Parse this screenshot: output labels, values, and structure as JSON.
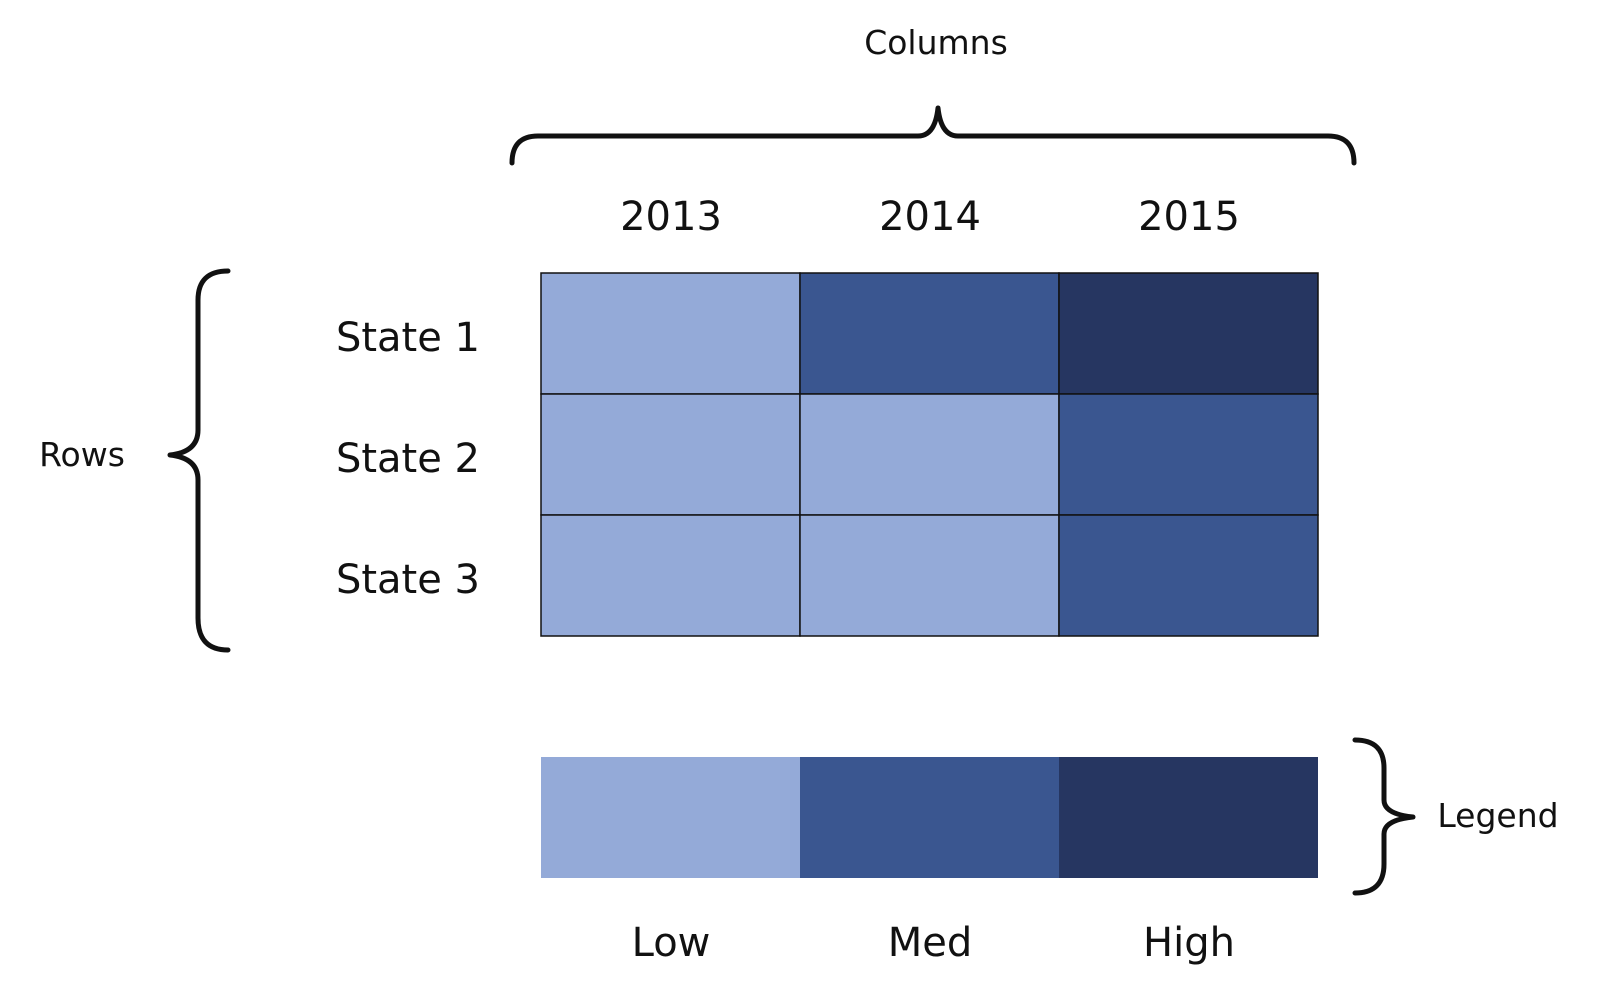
{
  "annotations": {
    "columns": "Columns",
    "rows": "Rows",
    "legend": "Legend"
  },
  "columns": [
    "2013",
    "2014",
    "2015"
  ],
  "rows": [
    "State 1",
    "State 2",
    "State 3"
  ],
  "legend": {
    "levels": [
      "Low",
      "Med",
      "High"
    ],
    "colors": [
      "#94aad8",
      "#3a5690",
      "#263661"
    ]
  },
  "cells": [
    [
      "Low",
      "Med",
      "High"
    ],
    [
      "Low",
      "Low",
      "Med"
    ],
    [
      "Low",
      "Low",
      "Med"
    ]
  ]
}
